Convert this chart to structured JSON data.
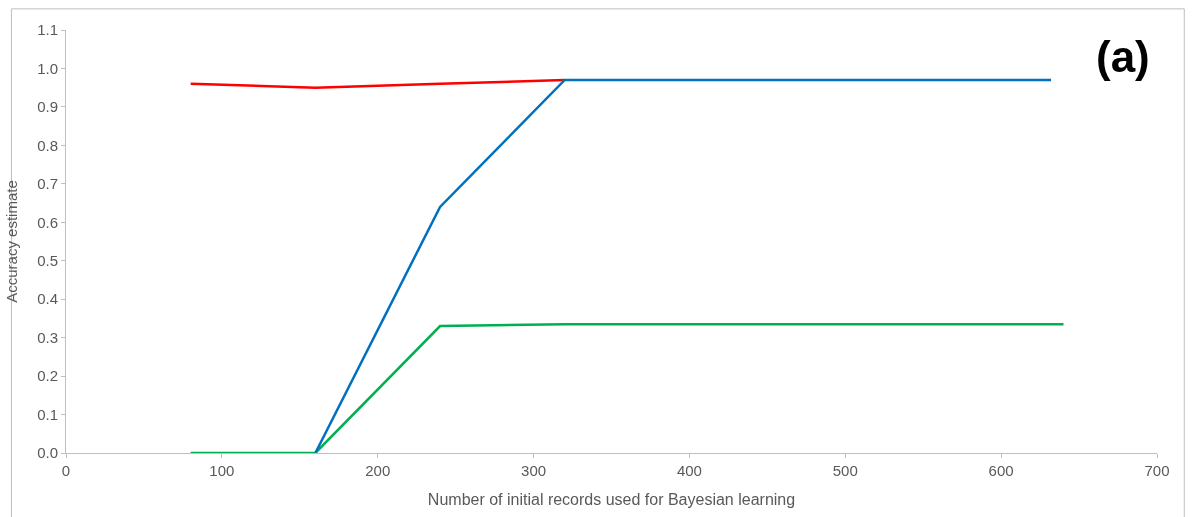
{
  "chart_data": {
    "type": "line",
    "xlabel": "Number of initial records used for Bayesian learning",
    "ylabel": "Accuracy estimate",
    "annotations": [
      "(a)"
    ],
    "xlim": [
      0,
      700
    ],
    "xticks": [
      0,
      100,
      200,
      300,
      400,
      500,
      600,
      700
    ],
    "ylim": [
      0,
      1.1
    ],
    "yticks": [
      {
        "value": 0,
        "label": "0.0"
      },
      0.1,
      0.2,
      0.3,
      0.4,
      0.5,
      0.6,
      0.7,
      0.8,
      0.9,
      {
        "value": 1,
        "label": "1.0"
      },
      1.1
    ],
    "marker": "none",
    "line_style": "solid",
    "series": [
      {
        "color": "#ff0000",
        "x": [
          80,
          160,
          240,
          320
        ],
        "values": [
          0.96,
          0.95,
          0.96,
          0.97
        ]
      },
      {
        "color": "#00b050",
        "x": [
          80,
          160,
          240,
          320,
          640
        ],
        "values": [
          0,
          0,
          0.33,
          0.335,
          0.335
        ]
      },
      {
        "color": "#0070c0",
        "x": [
          160,
          240,
          320,
          632
        ],
        "values": [
          0,
          0.64,
          0.97,
          0.97
        ]
      }
    ]
  }
}
